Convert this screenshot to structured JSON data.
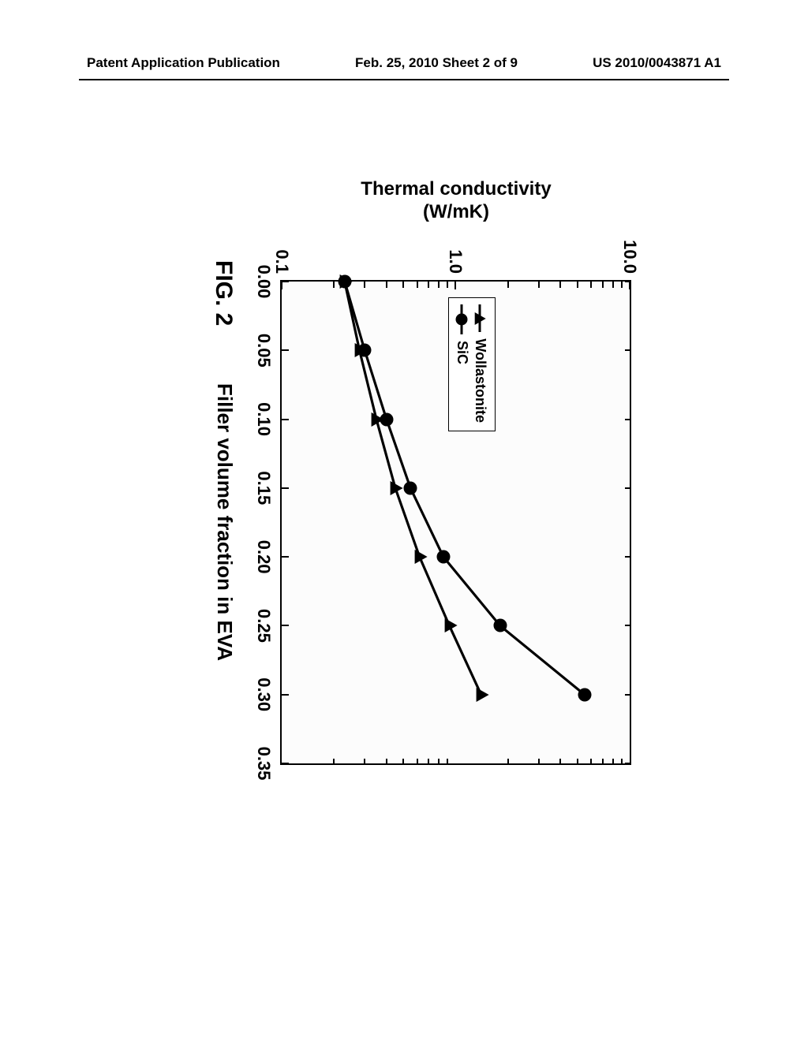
{
  "header": {
    "left": "Patent Application Publication",
    "center": "Feb. 25, 2010  Sheet 2 of 9",
    "right": "US 2010/0043871 A1"
  },
  "figure": {
    "label": "FIG. 2",
    "xaxis": {
      "title": "Filler volume fraction in EVA",
      "min": 0.0,
      "max": 0.35,
      "ticks": [
        0.0,
        0.05,
        0.1,
        0.15,
        0.2,
        0.25,
        0.3,
        0.35
      ],
      "tick_labels": [
        "0.00",
        "0.05",
        "0.10",
        "0.15",
        "0.20",
        "0.25",
        "0.30",
        "0.35"
      ],
      "label_fontsize": 26,
      "tick_fontsize": 22
    },
    "yaxis": {
      "title_line1": "Thermal conductivity",
      "title_line2": "(W/mK)",
      "scale": "log",
      "min": 0.1,
      "max": 10.0,
      "major_ticks": [
        0.1,
        1.0,
        10.0
      ],
      "major_tick_labels": [
        "0.1",
        "1.0",
        "10.0"
      ],
      "minor_ticks_per_decade": [
        2,
        3,
        4,
        5,
        6,
        7,
        8,
        9
      ],
      "label_fontsize": 24,
      "tick_fontsize": 22
    },
    "background_color": "#fcfcfc",
    "border_color": "#000000",
    "line_width": 3.2,
    "legend": {
      "position": "inside-left-middle",
      "items": [
        {
          "label": "Wollastonite",
          "marker": "triangle",
          "color": "#000000"
        },
        {
          "label": "SiC",
          "marker": "circle",
          "color": "#000000"
        }
      ]
    },
    "series": [
      {
        "name": "Wollastonite",
        "marker": "triangle",
        "marker_size": 16,
        "line_color": "#000000",
        "line_width": 3.2,
        "x": [
          0.0,
          0.05,
          0.1,
          0.15,
          0.2,
          0.25,
          0.3
        ],
        "y": [
          0.23,
          0.28,
          0.35,
          0.45,
          0.62,
          0.92,
          1.4
        ]
      },
      {
        "name": "SiC",
        "marker": "circle",
        "marker_size": 17,
        "line_color": "#000000",
        "line_width": 3.2,
        "x": [
          0.0,
          0.05,
          0.1,
          0.15,
          0.2,
          0.25,
          0.3
        ],
        "y": [
          0.23,
          0.3,
          0.4,
          0.55,
          0.85,
          1.8,
          5.5
        ]
      }
    ]
  }
}
